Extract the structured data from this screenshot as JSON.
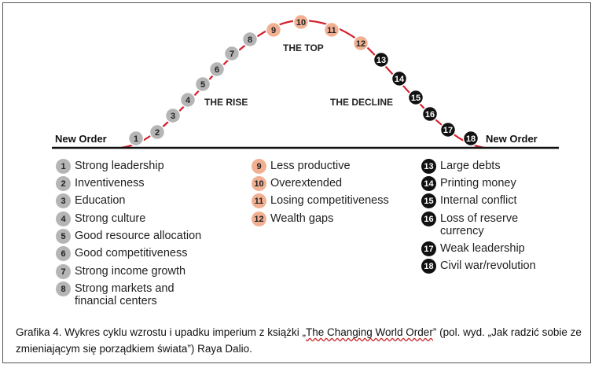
{
  "diagram": {
    "left_label": "New Order",
    "right_label": "New Order",
    "phase_labels": {
      "rise": "THE RISE",
      "top": "THE TOP",
      "decline": "THE DECLINE"
    },
    "colors": {
      "gray": "#b5b5b5",
      "peach": "#f2b093",
      "black": "#111111",
      "curve": "#d21f2b"
    },
    "nodes": [
      {
        "n": "1",
        "color": "gray"
      },
      {
        "n": "2",
        "color": "gray"
      },
      {
        "n": "3",
        "color": "gray"
      },
      {
        "n": "4",
        "color": "gray"
      },
      {
        "n": "5",
        "color": "gray"
      },
      {
        "n": "6",
        "color": "gray"
      },
      {
        "n": "7",
        "color": "gray"
      },
      {
        "n": "8",
        "color": "gray"
      },
      {
        "n": "9",
        "color": "peach"
      },
      {
        "n": "10",
        "color": "peach"
      },
      {
        "n": "11",
        "color": "peach"
      },
      {
        "n": "12",
        "color": "peach"
      },
      {
        "n": "13",
        "color": "black"
      },
      {
        "n": "14",
        "color": "black"
      },
      {
        "n": "15",
        "color": "black"
      },
      {
        "n": "16",
        "color": "black"
      },
      {
        "n": "17",
        "color": "black"
      },
      {
        "n": "18",
        "color": "black"
      }
    ]
  },
  "legend": {
    "col1": [
      {
        "n": "1",
        "text": "Strong leadership",
        "color": "gray"
      },
      {
        "n": "2",
        "text": "Inventiveness",
        "color": "gray"
      },
      {
        "n": "3",
        "text": "Education",
        "color": "gray"
      },
      {
        "n": "4",
        "text": "Strong culture",
        "color": "gray"
      },
      {
        "n": "5",
        "text": "Good resource allocation",
        "color": "gray"
      },
      {
        "n": "6",
        "text": "Good competitiveness",
        "color": "gray"
      },
      {
        "n": "7",
        "text": "Strong income growth",
        "color": "gray"
      },
      {
        "n": "8",
        "text": "Strong markets and financial centers",
        "color": "gray"
      }
    ],
    "col2": [
      {
        "n": "9",
        "text": "Less productive",
        "color": "peach"
      },
      {
        "n": "10",
        "text": "Overextended",
        "color": "peach"
      },
      {
        "n": "11",
        "text": "Losing competitiveness",
        "color": "peach"
      },
      {
        "n": "12",
        "text": "Wealth gaps",
        "color": "peach"
      }
    ],
    "col3": [
      {
        "n": "13",
        "text": "Large debts",
        "color": "black"
      },
      {
        "n": "14",
        "text": "Printing money",
        "color": "black"
      },
      {
        "n": "15",
        "text": "Internal conflict",
        "color": "black"
      },
      {
        "n": "16",
        "text": "Loss of reserve currency",
        "color": "black"
      },
      {
        "n": "17",
        "text": "Weak leadership",
        "color": "black"
      },
      {
        "n": "18",
        "text": "Civil war/revolution",
        "color": "black"
      }
    ]
  },
  "caption": {
    "part1": "Grafika 4. Wykres cyklu wzrostu i upadku imperium z książki „",
    "book_title": "The Changing World Order",
    "part2": "” (pol. wyd. „Jak radzić sobie ze zmieniającym się porządkiem świata”) Raya Dalio."
  }
}
